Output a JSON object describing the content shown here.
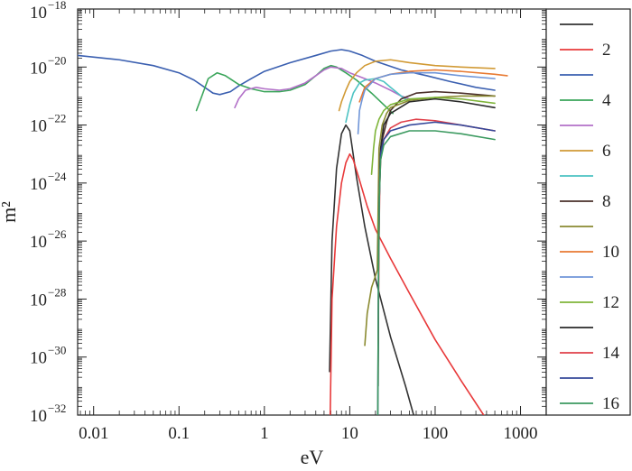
{
  "chart_data": {
    "type": "line",
    "title": "",
    "xlabel": "eV",
    "ylabel": "m²",
    "x_scale": "log",
    "y_scale": "log",
    "xlim": [
      0.0065,
      2000
    ],
    "ylim": [
      1e-32,
      1e-18
    ],
    "grid": false,
    "legend_position": "right",
    "x_ticks": [
      {
        "value": 0.01,
        "label": "0.01"
      },
      {
        "value": 0.1,
        "label": "0.1"
      },
      {
        "value": 1,
        "label": "1"
      },
      {
        "value": 10,
        "label": "10"
      },
      {
        "value": 100,
        "label": "100"
      },
      {
        "value": 1000,
        "label": "1000"
      }
    ],
    "y_ticks": [
      {
        "value": 1e-32,
        "base": "10",
        "exp": "−32"
      },
      {
        "value": 1e-30,
        "base": "10",
        "exp": "−30"
      },
      {
        "value": 1e-28,
        "base": "10",
        "exp": "−28"
      },
      {
        "value": 1e-26,
        "base": "10",
        "exp": "−26"
      },
      {
        "value": 1e-24,
        "base": "10",
        "exp": "−24"
      },
      {
        "value": 1e-22,
        "base": "10",
        "exp": "−22"
      },
      {
        "value": 1e-20,
        "base": "10",
        "exp": "−20"
      },
      {
        "value": 1e-18,
        "base": "10",
        "exp": "−18"
      }
    ],
    "series": [
      {
        "legend": "",
        "color": "#333333",
        "points": [
          [
            5.8,
            -30.5
          ],
          [
            6.2,
            -26
          ],
          [
            7,
            -23.5
          ],
          [
            8,
            -22.3
          ],
          [
            9,
            -22
          ],
          [
            10,
            -22.2
          ],
          [
            12,
            -23.8
          ],
          [
            15,
            -25.5
          ],
          [
            20,
            -27.3
          ],
          [
            30,
            -29.3
          ],
          [
            45,
            -31
          ],
          [
            56,
            -32
          ]
        ]
      },
      {
        "legend": "2",
        "color": "#e8393a",
        "points": [
          [
            5.9,
            -32
          ],
          [
            6.2,
            -28
          ],
          [
            7,
            -25.5
          ],
          [
            8,
            -24
          ],
          [
            9,
            -23.3
          ],
          [
            10,
            -23
          ],
          [
            11,
            -23.2
          ],
          [
            13,
            -23.9
          ],
          [
            16,
            -24.8
          ],
          [
            20,
            -25.6
          ],
          [
            30,
            -26.6
          ],
          [
            50,
            -27.8
          ],
          [
            100,
            -29.4
          ],
          [
            200,
            -30.8
          ],
          [
            370,
            -32
          ]
        ]
      },
      {
        "legend": "",
        "color": "#3a5fb0",
        "points": [
          [
            0.0065,
            -19.6
          ],
          [
            0.02,
            -19.75
          ],
          [
            0.05,
            -19.95
          ],
          [
            0.1,
            -20.2
          ],
          [
            0.15,
            -20.45
          ],
          [
            0.2,
            -20.7
          ],
          [
            0.25,
            -20.9
          ],
          [
            0.3,
            -20.95
          ],
          [
            0.4,
            -20.85
          ],
          [
            0.5,
            -20.65
          ],
          [
            0.7,
            -20.4
          ],
          [
            1,
            -20.15
          ],
          [
            2,
            -19.85
          ],
          [
            4,
            -19.6
          ],
          [
            6,
            -19.45
          ],
          [
            8,
            -19.4
          ],
          [
            10,
            -19.45
          ],
          [
            14,
            -19.6
          ],
          [
            20,
            -19.8
          ],
          [
            40,
            -20.1
          ],
          [
            80,
            -20.3
          ],
          [
            150,
            -20.5
          ],
          [
            300,
            -20.7
          ],
          [
            500,
            -20.8
          ]
        ]
      },
      {
        "legend": "4",
        "color": "#3aa55a",
        "points": [
          [
            0.16,
            -21.5
          ],
          [
            0.18,
            -21.1
          ],
          [
            0.22,
            -20.4
          ],
          [
            0.28,
            -20.2
          ],
          [
            0.35,
            -20.3
          ],
          [
            0.5,
            -20.6
          ],
          [
            0.7,
            -20.75
          ],
          [
            1,
            -20.85
          ],
          [
            1.5,
            -20.85
          ],
          [
            2,
            -20.8
          ],
          [
            3,
            -20.6
          ],
          [
            4,
            -20.3
          ],
          [
            5,
            -20.05
          ],
          [
            6,
            -19.95
          ],
          [
            7,
            -20
          ],
          [
            9,
            -20.2
          ],
          [
            12,
            -20.45
          ],
          [
            18,
            -20.9
          ],
          [
            25,
            -21.3
          ],
          [
            32,
            -21.6
          ]
        ]
      },
      {
        "legend": "",
        "color": "#b270c8",
        "points": [
          [
            0.45,
            -21.4
          ],
          [
            0.5,
            -21.1
          ],
          [
            0.6,
            -20.8
          ],
          [
            0.8,
            -20.7
          ],
          [
            1,
            -20.75
          ],
          [
            1.5,
            -20.8
          ],
          [
            2,
            -20.75
          ],
          [
            3,
            -20.55
          ],
          [
            4,
            -20.3
          ],
          [
            5,
            -20.1
          ],
          [
            6,
            -20
          ],
          [
            8,
            -20.05
          ],
          [
            10,
            -20.2
          ],
          [
            15,
            -20.4
          ],
          [
            20,
            -20.55
          ],
          [
            30,
            -20.8
          ],
          [
            40,
            -21
          ],
          [
            50,
            -21.1
          ]
        ]
      },
      {
        "legend": "6",
        "color": "#d19a35",
        "points": [
          [
            7.5,
            -21.5
          ],
          [
            8,
            -21.2
          ],
          [
            9,
            -20.8
          ],
          [
            10,
            -20.5
          ],
          [
            12,
            -20.2
          ],
          [
            15,
            -19.95
          ],
          [
            20,
            -19.8
          ],
          [
            30,
            -19.75
          ],
          [
            50,
            -19.85
          ],
          [
            100,
            -19.95
          ],
          [
            200,
            -20
          ],
          [
            500,
            -20.05
          ]
        ]
      },
      {
        "legend": "",
        "color": "#4dc3c3",
        "points": [
          [
            9,
            -21.9
          ],
          [
            10,
            -21.3
          ],
          [
            11,
            -20.9
          ],
          [
            13,
            -20.55
          ],
          [
            15,
            -20.45
          ],
          [
            20,
            -20.4
          ],
          [
            25,
            -20.5
          ],
          [
            30,
            -20.7
          ],
          [
            40,
            -21
          ],
          [
            50,
            -21.2
          ]
        ]
      },
      {
        "legend": "8",
        "color": "#4a2f2a",
        "points": [
          [
            22,
            -23.5
          ],
          [
            24,
            -22.5
          ],
          [
            27,
            -21.9
          ],
          [
            30,
            -21.5
          ],
          [
            40,
            -21.1
          ],
          [
            60,
            -20.9
          ],
          [
            100,
            -20.85
          ],
          [
            200,
            -20.9
          ],
          [
            500,
            -21
          ]
        ]
      },
      {
        "legend": "",
        "color": "#8a8a30",
        "points": [
          [
            15,
            -29.6
          ],
          [
            16,
            -28.5
          ],
          [
            18,
            -27.6
          ],
          [
            20,
            -27.2
          ],
          [
            21,
            -27
          ],
          [
            22,
            -22.8
          ],
          [
            24,
            -22
          ],
          [
            27,
            -21.6
          ],
          [
            30,
            -21.4
          ],
          [
            50,
            -21.15
          ],
          [
            100,
            -21.05
          ],
          [
            200,
            -21
          ],
          [
            500,
            -21
          ]
        ]
      },
      {
        "legend": "10",
        "color": "#e87a32",
        "points": [
          [
            13,
            -21.2
          ],
          [
            15,
            -20.7
          ],
          [
            20,
            -20.4
          ],
          [
            30,
            -20.25
          ],
          [
            50,
            -20.15
          ],
          [
            100,
            -20.1
          ],
          [
            200,
            -20.15
          ],
          [
            500,
            -20.25
          ],
          [
            700,
            -20.3
          ]
        ]
      },
      {
        "legend": "",
        "color": "#6f95d8",
        "points": [
          [
            12.5,
            -22.3
          ],
          [
            13,
            -21.5
          ],
          [
            14,
            -21.1
          ],
          [
            15,
            -20.8
          ],
          [
            20,
            -20.4
          ],
          [
            30,
            -20.25
          ],
          [
            50,
            -20.2
          ],
          [
            100,
            -20.2
          ],
          [
            200,
            -20.3
          ],
          [
            500,
            -20.4
          ]
        ]
      },
      {
        "legend": "12",
        "color": "#7fb53a",
        "points": [
          [
            18,
            -23.7
          ],
          [
            19,
            -22.8
          ],
          [
            20,
            -22.2
          ],
          [
            22,
            -21.8
          ],
          [
            25,
            -21.5
          ],
          [
            30,
            -21.3
          ],
          [
            50,
            -21.1
          ],
          [
            100,
            -21.05
          ],
          [
            200,
            -21.1
          ],
          [
            500,
            -21.25
          ]
        ]
      },
      {
        "legend": "",
        "color": "#2a2a2a",
        "points": [
          [
            21.5,
            -31
          ],
          [
            21.8,
            -27
          ],
          [
            22.2,
            -24.5
          ],
          [
            23,
            -22.8
          ],
          [
            25,
            -22
          ],
          [
            30,
            -21.6
          ],
          [
            50,
            -21.2
          ],
          [
            100,
            -21.1
          ],
          [
            200,
            -21.2
          ],
          [
            500,
            -21.4
          ]
        ]
      },
      {
        "legend": "14",
        "color": "#e0404a",
        "points": [
          [
            21.5,
            -29.5
          ],
          [
            22,
            -26
          ],
          [
            22.5,
            -24
          ],
          [
            23,
            -23.2
          ],
          [
            25,
            -22.5
          ],
          [
            30,
            -22.1
          ],
          [
            40,
            -21.9
          ],
          [
            60,
            -21.8
          ],
          [
            100,
            -21.85
          ],
          [
            200,
            -22
          ],
          [
            500,
            -22.2
          ]
        ]
      },
      {
        "legend": "",
        "color": "#34489a",
        "points": [
          [
            21.3,
            -32
          ],
          [
            21.7,
            -27
          ],
          [
            22.2,
            -24.5
          ],
          [
            23,
            -23
          ],
          [
            25,
            -22.5
          ],
          [
            30,
            -22.2
          ],
          [
            50,
            -22
          ],
          [
            100,
            -21.9
          ],
          [
            200,
            -22
          ],
          [
            500,
            -22.2
          ]
        ]
      },
      {
        "legend": "16",
        "color": "#3c9a60",
        "points": [
          [
            21.3,
            -32
          ],
          [
            21.7,
            -27
          ],
          [
            22.2,
            -24.5
          ],
          [
            23,
            -23.2
          ],
          [
            25,
            -22.7
          ],
          [
            30,
            -22.4
          ],
          [
            50,
            -22.2
          ],
          [
            100,
            -22.2
          ],
          [
            200,
            -22.3
          ],
          [
            500,
            -22.5
          ]
        ]
      }
    ]
  }
}
